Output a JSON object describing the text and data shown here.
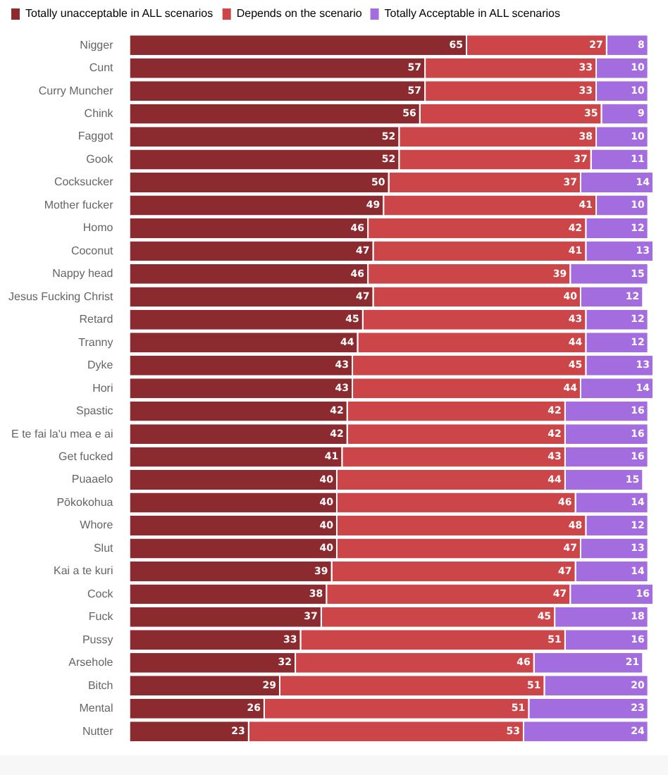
{
  "chart_data": {
    "type": "bar",
    "orientation": "horizontal",
    "stacked": true,
    "data_labels": true,
    "legend": "top left",
    "tick_labels": "y",
    "xlim": [
      0,
      101
    ],
    "categories": [
      "Nigger",
      "Cunt",
      "Curry Muncher",
      "Chink",
      "Faggot",
      "Gook",
      "Cocksucker",
      "Mother fucker",
      "Homo",
      "Coconut",
      "Nappy head",
      "Jesus Fucking Christ",
      "Retard",
      "Tranny",
      "Dyke",
      "Hori",
      "Spastic",
      "E te fai la'u mea e ai",
      "Get fucked",
      "Puaaelo",
      "Pōkokohua",
      "Whore",
      "Slut",
      "Kai a te kuri",
      "Cock",
      "Fuck",
      "Pussy",
      "Arsehole",
      "Bitch",
      "Mental",
      "Nutter"
    ],
    "series": [
      {
        "name": "Totally unacceptable in ALL scenarios",
        "color": "#8b2b30",
        "values": [
          65,
          57,
          57,
          56,
          52,
          52,
          50,
          49,
          46,
          47,
          46,
          47,
          45,
          44,
          43,
          43,
          42,
          42,
          41,
          40,
          40,
          40,
          40,
          39,
          38,
          37,
          33,
          32,
          29,
          26,
          23
        ]
      },
      {
        "name": "Depends on the scenario",
        "color": "#cc4649",
        "values": [
          27,
          33,
          33,
          35,
          38,
          37,
          37,
          41,
          42,
          41,
          39,
          40,
          43,
          44,
          45,
          44,
          42,
          42,
          43,
          44,
          46,
          48,
          47,
          47,
          47,
          45,
          51,
          46,
          51,
          51,
          53
        ]
      },
      {
        "name": "Totally Acceptable in ALL scenarios",
        "color": "#a46ddf",
        "values": [
          8,
          10,
          10,
          9,
          10,
          11,
          14,
          10,
          12,
          13,
          15,
          12,
          12,
          12,
          13,
          14,
          16,
          16,
          16,
          15,
          14,
          12,
          13,
          14,
          16,
          18,
          16,
          21,
          20,
          23,
          24
        ]
      }
    ]
  }
}
